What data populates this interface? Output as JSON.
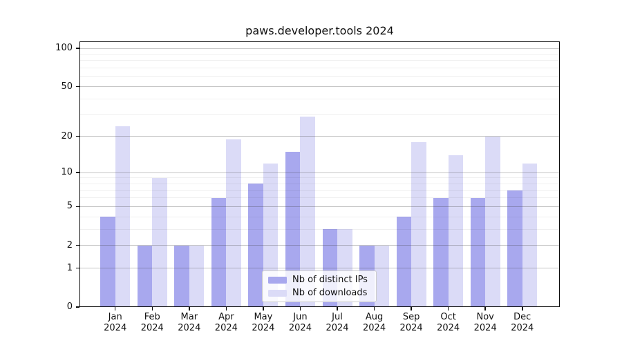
{
  "chart_data": {
    "type": "bar",
    "title": "paws.developer.tools 2024",
    "xlabel": "",
    "ylabel": "",
    "categories": [
      "Jan",
      "Feb",
      "Mar",
      "Apr",
      "May",
      "Jun",
      "Jul",
      "Aug",
      "Sep",
      "Oct",
      "Nov",
      "Dec"
    ],
    "category_year_label": "2024",
    "series": [
      {
        "name": "Nb of distinct IPs",
        "slug": "distinct-ips",
        "color": "#a8a8ee",
        "values": [
          4,
          2,
          2,
          6,
          8,
          15,
          3,
          2,
          4,
          6,
          6,
          7
        ]
      },
      {
        "name": "Nb of downloads",
        "slug": "downloads",
        "color": "#dbdbf7",
        "values": [
          24,
          9,
          2,
          19,
          12,
          29,
          3,
          2,
          18,
          14,
          20,
          12
        ]
      }
    ],
    "yscale": "log1p",
    "ylim": [
      0,
      113
    ],
    "y_major_ticks": [
      0,
      1,
      2,
      5,
      10,
      20,
      50,
      100
    ],
    "y_minor_gridlines": [
      3,
      4,
      6,
      7,
      8,
      9,
      30,
      40,
      60,
      70,
      80,
      90
    ],
    "grid": true,
    "legend_position": "lower center"
  }
}
